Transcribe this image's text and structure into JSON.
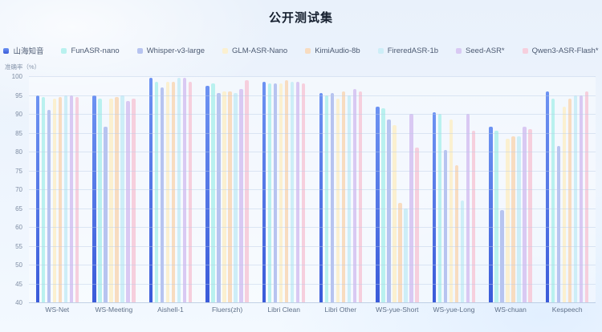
{
  "page": {
    "title": "公开测试集",
    "y_axis_name": "准确率（%）"
  },
  "chart_data": {
    "type": "bar",
    "title": "公开测试集",
    "xlabel": "",
    "ylabel": "准确率（%）",
    "ylim": [
      40,
      100
    ],
    "tick_step": 5,
    "grid": true,
    "legend_position": "top",
    "categories": [
      "WS-Net",
      "WS-Meeting",
      "Aishell-1",
      "Fluers(zh)",
      "Libri Clean",
      "Libri Other",
      "WS-yue-Short",
      "WS-yue-Long",
      "WS-chuan",
      "Kespeech"
    ],
    "series": [
      {
        "name": "山海知音",
        "color": "#4a76dd",
        "values": [
          95,
          95,
          99.5,
          97.5,
          98.5,
          95.5,
          92,
          90.5,
          86.5,
          96
        ]
      },
      {
        "name": "FunASR-nano",
        "color": "#b9f1ef",
        "values": [
          94.5,
          94,
          98.5,
          98,
          98,
          95,
          91.5,
          90,
          85.5,
          94
        ]
      },
      {
        "name": "Whisper-v3-large",
        "color": "#b7c4f0",
        "values": [
          91,
          86.5,
          97,
          95.5,
          98,
          95.5,
          88.5,
          80.5,
          64.5,
          81.5
        ]
      },
      {
        "name": "GLM-ASR-Nano",
        "color": "#fbf0d0",
        "values": [
          94,
          94,
          98.5,
          96,
          98,
          94,
          87,
          88.5,
          83.5,
          92
        ]
      },
      {
        "name": "KimiAudio-8b",
        "color": "#f8dcc0",
        "values": [
          94.5,
          94.5,
          98.5,
          96,
          99,
          96,
          66.5,
          76.5,
          84,
          94
        ]
      },
      {
        "name": "FireredASR-1b",
        "color": "#cdeef7",
        "values": [
          95,
          95,
          99.5,
          95.5,
          98.5,
          95,
          65,
          67,
          84,
          95
        ]
      },
      {
        "name": "Seed-ASR*",
        "color": "#d9c9f3",
        "values": [
          95,
          93.5,
          99.5,
          96.5,
          98.5,
          96.5,
          90,
          90,
          86.5,
          95
        ]
      },
      {
        "name": "Qwen3-ASR-Flash*",
        "color": "#f6cfdd",
        "values": [
          94.5,
          94,
          98.5,
          99,
          98,
          96,
          81,
          85.5,
          86,
          96
        ]
      }
    ]
  }
}
